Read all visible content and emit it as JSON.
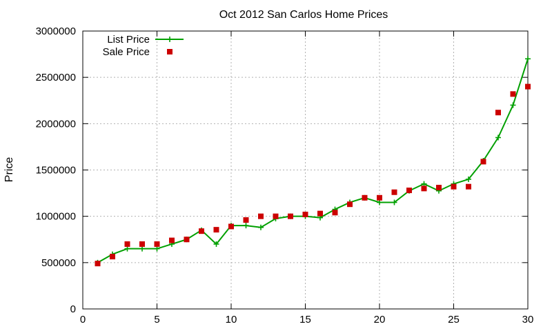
{
  "chart_data": {
    "type": "line",
    "title": "Oct 2012 San Carlos Home Prices",
    "xlabel": "",
    "ylabel": "Price",
    "xlim": [
      0,
      30
    ],
    "ylim": [
      0,
      3000000
    ],
    "xticks": [
      "0",
      "5",
      "10",
      "15",
      "20",
      "25",
      "30"
    ],
    "yticks": [
      "0",
      "500000",
      "1000000",
      "1500000",
      "2000000",
      "2500000",
      "3000000"
    ],
    "grid": true,
    "legend_position": "top-left",
    "series": [
      {
        "name": "List Price",
        "type": "line",
        "color": "#00a000",
        "marker": "plus",
        "x": [
          1,
          2,
          3,
          4,
          5,
          6,
          7,
          8,
          9,
          10,
          11,
          12,
          13,
          14,
          15,
          16,
          17,
          18,
          19,
          20,
          21,
          22,
          23,
          24,
          25,
          26,
          27,
          28,
          29,
          30
        ],
        "values": [
          500000,
          590000,
          650000,
          650000,
          650000,
          700000,
          750000,
          850000,
          700000,
          900000,
          900000,
          880000,
          975000,
          1000000,
          1000000,
          985000,
          1075000,
          1150000,
          1200000,
          1150000,
          1150000,
          1275000,
          1350000,
          1275000,
          1350000,
          1400000,
          1600000,
          1850000,
          2200000,
          2700000
        ]
      },
      {
        "name": "Sale Price",
        "type": "scatter",
        "color": "#cc0000",
        "marker": "square",
        "x": [
          1,
          2,
          3,
          4,
          5,
          6,
          7,
          8,
          9,
          10,
          11,
          12,
          13,
          14,
          15,
          16,
          17,
          18,
          19,
          20,
          21,
          22,
          23,
          24,
          25,
          26,
          27,
          28,
          29,
          30
        ],
        "values": [
          490000,
          565000,
          700000,
          700000,
          700000,
          740000,
          750000,
          840000,
          855000,
          890000,
          960000,
          1000000,
          1000000,
          1000000,
          1020000,
          1030000,
          1040000,
          1130000,
          1200000,
          1200000,
          1260000,
          1280000,
          1300000,
          1310000,
          1320000,
          1320000,
          1590000,
          2120000,
          2320000,
          2400000
        ]
      }
    ]
  }
}
